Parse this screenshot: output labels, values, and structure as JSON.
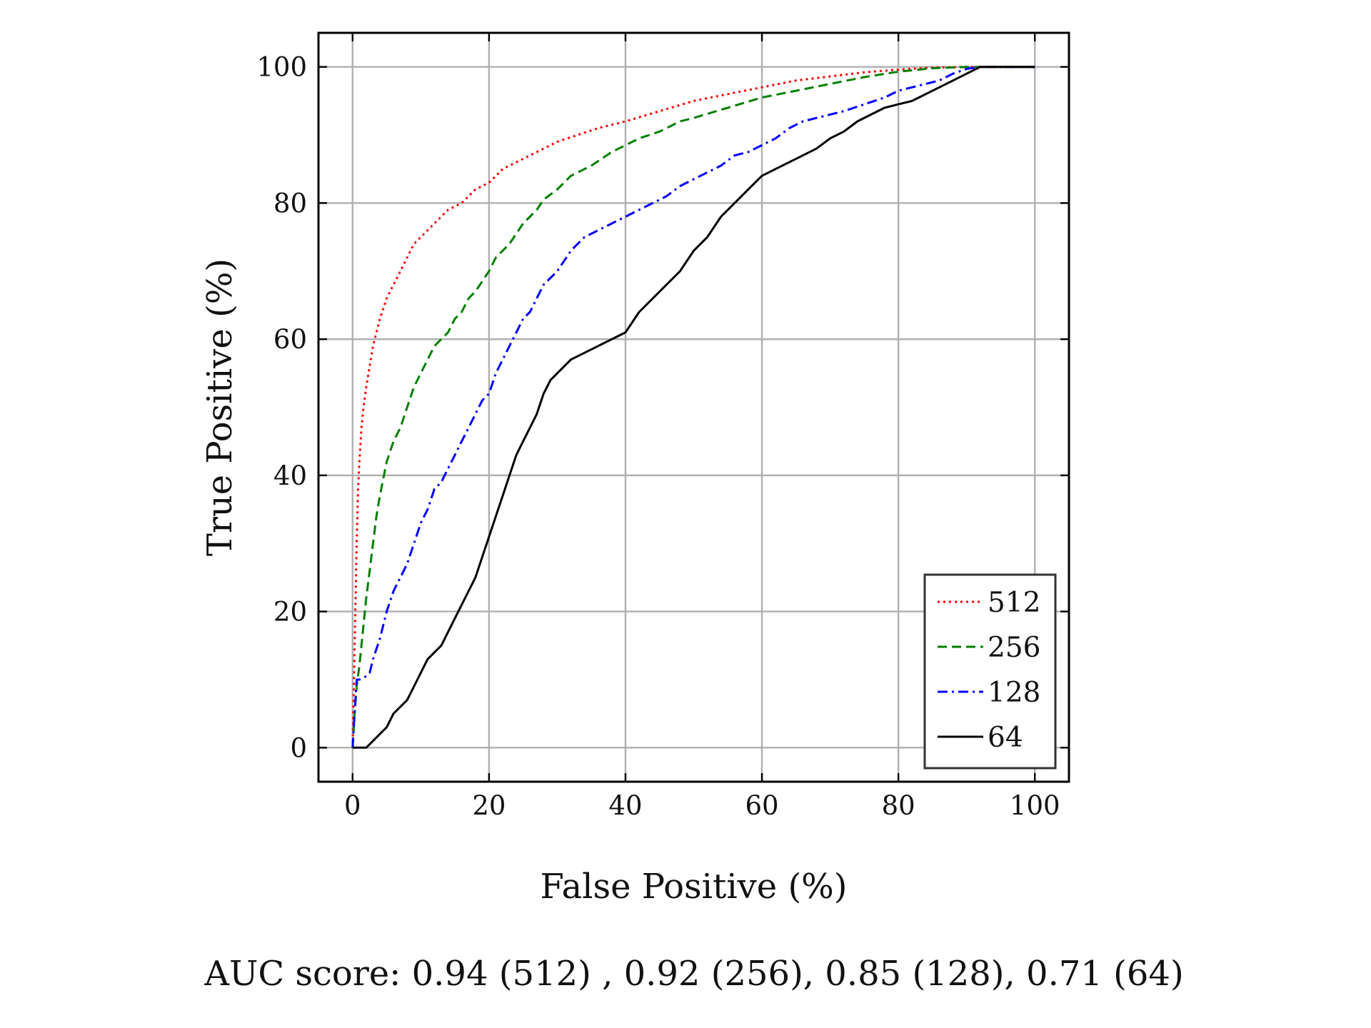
{
  "chart_data": {
    "type": "line",
    "xlabel": "False Positive (%)",
    "ylabel": "True Positive (%)",
    "xlim": [
      -5,
      105
    ],
    "ylim": [
      -5,
      105
    ],
    "xticks": [
      0,
      20,
      40,
      60,
      80,
      100
    ],
    "yticks": [
      0,
      20,
      40,
      60,
      80,
      100
    ],
    "grid": true,
    "legend_position": "bottom-right",
    "caption": "AUC score: 0.94 (512) , 0.92 (256), 0.85 (128), 0.71 (64)",
    "series": [
      {
        "name": "512",
        "color": "#ff0000",
        "style": "dotted",
        "x": [
          0,
          0.2,
          0.4,
          0.6,
          0.8,
          1,
          1.3,
          1.6,
          2,
          2.5,
          3,
          3.5,
          4,
          5,
          6,
          7,
          8,
          9,
          10,
          11,
          12,
          14,
          16,
          18,
          20,
          22,
          24,
          26,
          28,
          30,
          33,
          36,
          40,
          45,
          50,
          55,
          60,
          65,
          70,
          75,
          80,
          85,
          90,
          100
        ],
        "y": [
          0,
          10,
          20,
          30,
          38,
          42,
          47,
          50,
          53,
          56,
          59,
          61,
          63,
          66,
          68,
          70,
          72,
          74,
          75,
          76,
          77,
          79,
          80,
          82,
          83,
          85,
          86,
          87,
          88,
          89,
          90,
          91,
          92,
          93.5,
          95,
          96,
          97,
          98,
          98.6,
          99.2,
          99.6,
          99.9,
          100,
          100
        ]
      },
      {
        "name": "256",
        "color": "#008000",
        "style": "dashed",
        "x": [
          0,
          0.3,
          0.6,
          1,
          1.5,
          2,
          2.5,
          3,
          3.5,
          4,
          5,
          6,
          7,
          8,
          9,
          10,
          11,
          12,
          13,
          14,
          15,
          16,
          17,
          18,
          19,
          20,
          21,
          22,
          23,
          24,
          25,
          26,
          27,
          28,
          30,
          32,
          35,
          38,
          40,
          42,
          45,
          48,
          50,
          55,
          60,
          65,
          70,
          75,
          80,
          85,
          90,
          100
        ],
        "y": [
          0,
          5,
          9,
          12,
          17,
          22,
          26,
          30,
          34,
          37,
          42,
          45,
          47,
          50,
          53,
          55,
          57,
          59,
          60,
          61,
          63,
          64,
          66,
          67,
          68.5,
          70,
          72,
          73,
          74,
          75.5,
          77,
          78,
          79,
          80.5,
          82,
          84,
          85.5,
          87.5,
          88.5,
          89.5,
          90.5,
          92,
          92.5,
          94,
          95.5,
          96.5,
          97.5,
          98.5,
          99.3,
          99.8,
          100,
          100
        ]
      },
      {
        "name": "128",
        "color": "#0000ff",
        "style": "dashdot",
        "x": [
          0,
          0.3,
          0.6,
          1,
          2,
          2.5,
          3,
          4,
          5,
          6,
          7,
          8,
          9,
          10,
          11,
          12,
          13,
          14,
          15,
          16,
          17,
          18,
          19,
          20,
          21,
          22,
          23,
          24,
          25,
          26,
          27,
          28,
          29,
          30,
          32,
          34,
          36,
          38,
          40,
          42,
          44,
          46,
          48,
          50,
          52,
          54,
          56,
          58,
          60,
          62,
          64,
          66,
          68,
          70,
          72,
          75,
          78,
          80,
          82,
          84,
          86,
          88,
          90,
          92,
          100
        ],
        "y": [
          0,
          5,
          10,
          10,
          10.5,
          11,
          13,
          16,
          20,
          23,
          25,
          27,
          30,
          33,
          35,
          38,
          39,
          41,
          43,
          45,
          47,
          49,
          51,
          52,
          55,
          57,
          59,
          61,
          63,
          64,
          66,
          68,
          69,
          70,
          73,
          75,
          76,
          77,
          78,
          79,
          80,
          81,
          82.5,
          83.5,
          84.5,
          85.5,
          87,
          87.5,
          88.5,
          89.5,
          91,
          92,
          92.5,
          93,
          93.5,
          94.5,
          95.5,
          96.5,
          97,
          97.5,
          98,
          99,
          99.7,
          100,
          100
        ]
      },
      {
        "name": "64",
        "color": "#000000",
        "style": "solid",
        "x": [
          0,
          1,
          2,
          3,
          4,
          5,
          6,
          7,
          8,
          9,
          10,
          11,
          12,
          13,
          14,
          15,
          16,
          17,
          18,
          19,
          20,
          21,
          22,
          23,
          24,
          25,
          26,
          27,
          28,
          29,
          30,
          32,
          34,
          36,
          38,
          40,
          42,
          44,
          46,
          48,
          50,
          52,
          54,
          56,
          58,
          60,
          62,
          64,
          66,
          68,
          70,
          72,
          74,
          76,
          78,
          80,
          82,
          84,
          86,
          88,
          90,
          92,
          100
        ],
        "y": [
          0,
          0,
          0,
          1,
          2,
          3,
          5,
          6,
          7,
          9,
          11,
          13,
          14,
          15,
          17,
          19,
          21,
          23,
          25,
          28,
          31,
          34,
          37,
          40,
          43,
          45,
          47,
          49,
          52,
          54,
          55,
          57,
          58,
          59,
          60,
          61,
          64,
          66,
          68,
          70,
          73,
          75,
          78,
          80,
          82,
          84,
          85,
          86,
          87,
          88,
          89.5,
          90.5,
          92,
          93,
          94,
          94.5,
          95,
          96,
          97,
          98,
          99,
          100,
          100
        ]
      }
    ]
  }
}
